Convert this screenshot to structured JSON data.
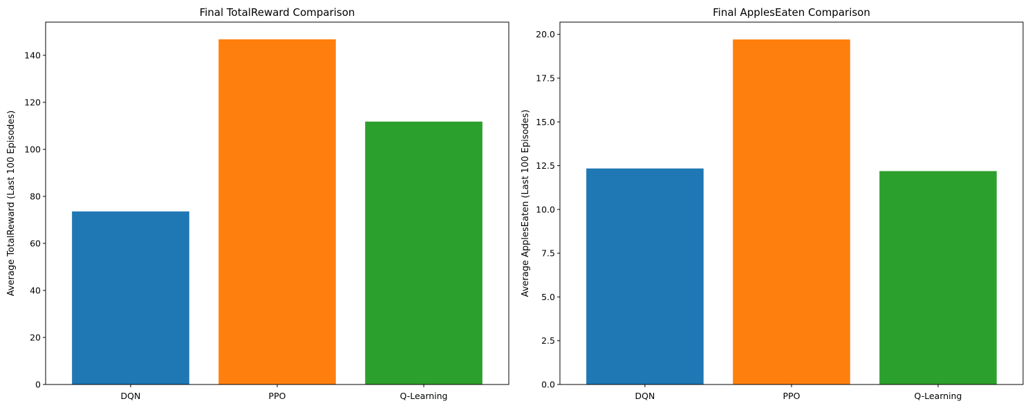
{
  "chart_data": [
    {
      "type": "bar",
      "title": "Final TotalReward Comparison",
      "xlabel": "",
      "ylabel": "Average TotalReward (Last 100 Episodes)",
      "categories": [
        "DQN",
        "PPO",
        "Q-Learning"
      ],
      "values": [
        73.6,
        146.8,
        111.8
      ],
      "colors": [
        "#1f77b4",
        "#ff7f0e",
        "#2ca02c"
      ],
      "ylim": [
        0,
        154.1
      ],
      "yticks": [
        0,
        20,
        40,
        60,
        80,
        100,
        120,
        140
      ],
      "ytick_labels": [
        "0",
        "20",
        "40",
        "60",
        "80",
        "100",
        "120",
        "140"
      ],
      "grid": false,
      "legend": false
    },
    {
      "type": "bar",
      "title": "Final ApplesEaten Comparison",
      "xlabel": "",
      "ylabel": "Average ApplesEaten (Last 100 Episodes)",
      "categories": [
        "DQN",
        "PPO",
        "Q-Learning"
      ],
      "values": [
        12.34,
        19.71,
        12.19
      ],
      "colors": [
        "#1f77b4",
        "#ff7f0e",
        "#2ca02c"
      ],
      "ylim": [
        0,
        20.7
      ],
      "yticks": [
        0,
        2.5,
        5,
        7.5,
        10,
        12.5,
        15,
        17.5,
        20
      ],
      "ytick_labels": [
        "0.0",
        "2.5",
        "5.0",
        "7.5",
        "10.0",
        "12.5",
        "15.0",
        "17.5",
        "20.0"
      ],
      "grid": false,
      "legend": false
    }
  ]
}
